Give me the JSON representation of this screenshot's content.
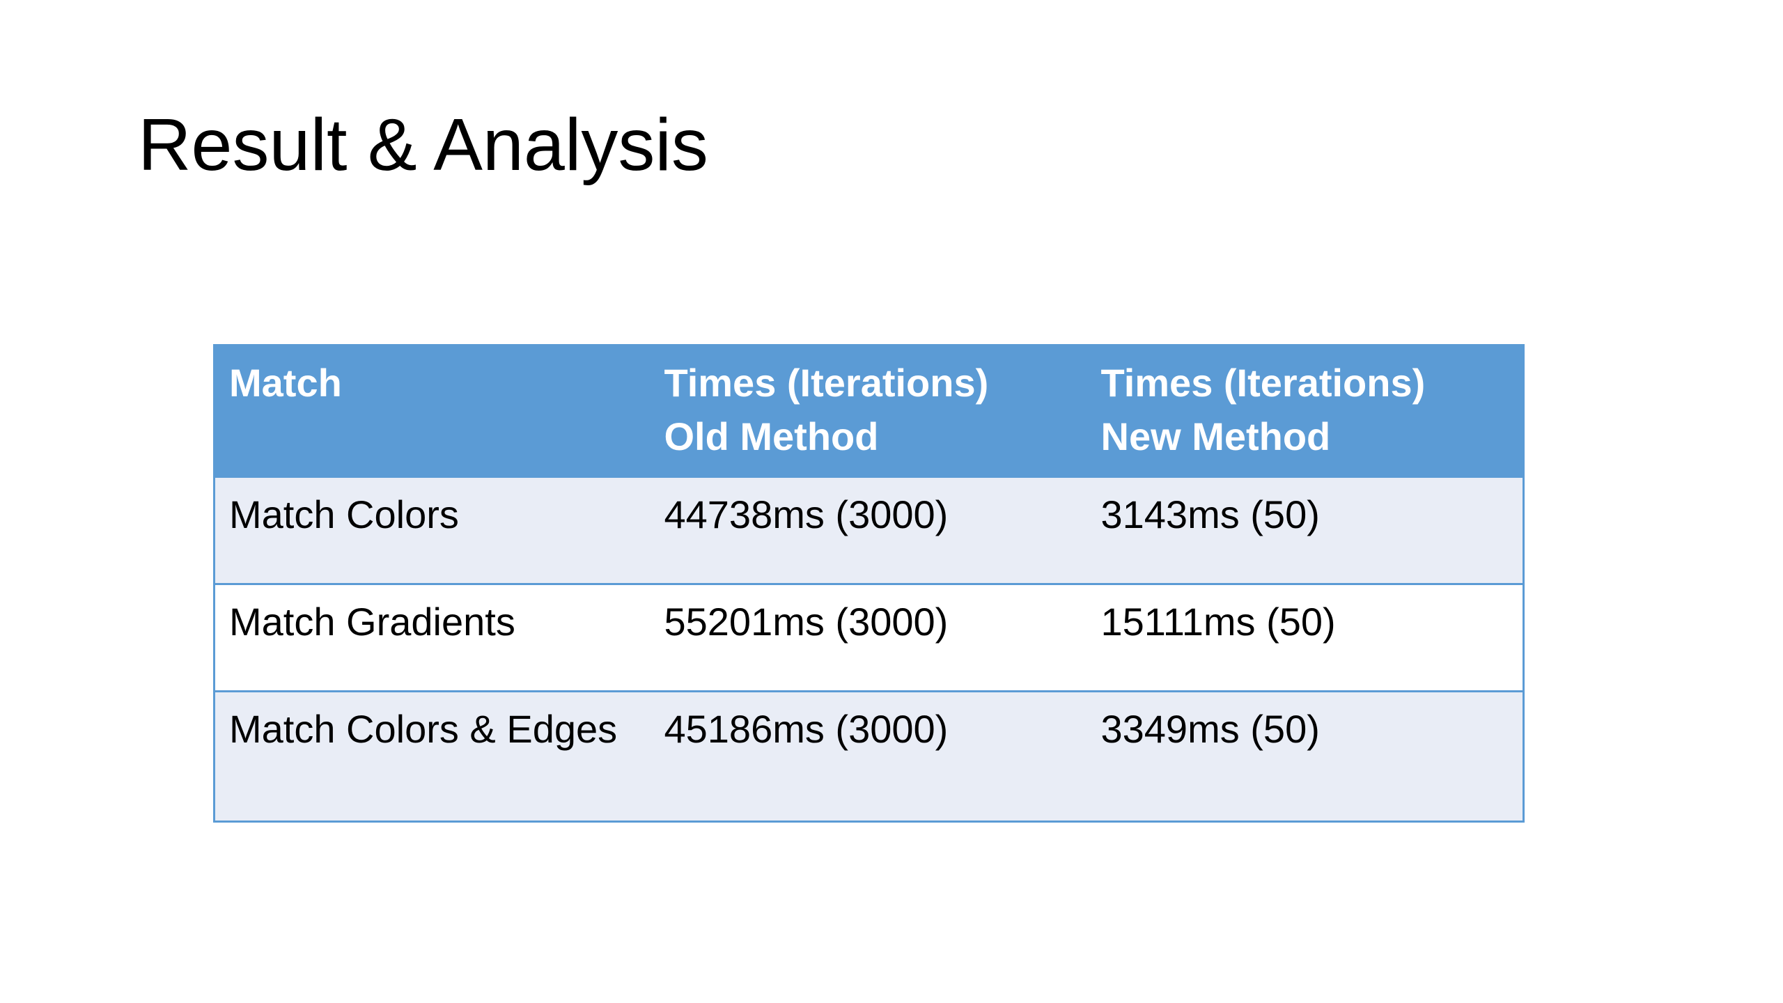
{
  "slide": {
    "title": "Result & Analysis"
  },
  "table": {
    "headers": [
      {
        "line1": "Match",
        "line2": ""
      },
      {
        "line1": "Times (Iterations)",
        "line2": "Old Method"
      },
      {
        "line1": "Times (Iterations)",
        "line2": "New Method"
      }
    ],
    "rows": [
      [
        "Match Colors",
        "44738ms (3000)",
        "3143ms (50)"
      ],
      [
        "Match Gradients",
        "55201ms (3000)",
        "15111ms (50)"
      ],
      [
        "Match Colors & Edges",
        "45186ms (3000)",
        "3349ms (50)"
      ]
    ]
  },
  "colors": {
    "header_fill": "#5b9bd5",
    "band_fill": "#e9edf6",
    "plain_fill": "#ffffff",
    "border": "#5b9bd5"
  }
}
